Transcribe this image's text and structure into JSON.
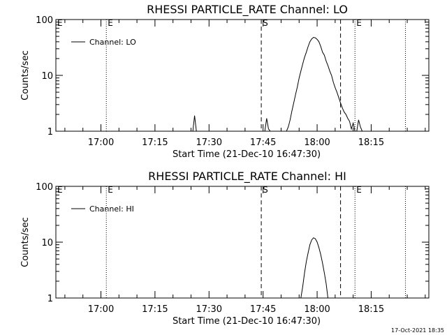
{
  "chart_data": [
    {
      "type": "line",
      "title": "RHESSI PARTICLE_RATE Channel: LO",
      "xlabel": "Start Time (21-Dec-10 16:47:30)",
      "ylabel": "Counts/sec",
      "y_scale": "log",
      "ylim": [
        1,
        100
      ],
      "y_ticks": [
        1,
        10,
        100
      ],
      "y_tick_labels": [
        "1",
        "10",
        "100"
      ],
      "xlim": [
        "16:47:30",
        "18:31:00"
      ],
      "x_ticks": [
        "17:00",
        "17:15",
        "17:30",
        "17:45",
        "18:00",
        "18:15"
      ],
      "legend": "top-left",
      "markers": [
        {
          "time": "17:01:30",
          "style": "dotted",
          "label": "E"
        },
        {
          "time": "17:44:30",
          "style": "dashed",
          "label": "S"
        },
        {
          "time": "18:06:30",
          "style": "dashed",
          "label": ""
        },
        {
          "time": "18:10:30",
          "style": "dotted",
          "label": "E"
        },
        {
          "time": "18:24:30",
          "style": "dotted",
          "label": ""
        }
      ],
      "series": [
        {
          "name": "Channel: LO",
          "x": [
            "17:25:30",
            "17:26:00",
            "17:26:30",
            "17:45:30",
            "17:46:00",
            "17:46:30",
            "17:47:00",
            "17:51:30",
            "17:52:00",
            "17:52:30",
            "17:53:00",
            "17:53:30",
            "17:54:00",
            "17:54:30",
            "17:55:00",
            "17:55:30",
            "17:56:00",
            "17:56:30",
            "17:57:00",
            "17:57:30",
            "17:58:00",
            "17:58:30",
            "17:59:00",
            "17:59:30",
            "18:00:00",
            "18:00:30",
            "18:01:00",
            "18:01:30",
            "18:02:00",
            "18:02:30",
            "18:03:00",
            "18:03:30",
            "18:04:00",
            "18:04:30",
            "18:05:00",
            "18:05:30",
            "18:06:00",
            "18:06:30",
            "18:07:00",
            "18:07:30",
            "18:08:00",
            "18:08:30",
            "18:09:00",
            "18:09:30",
            "18:10:00",
            "18:10:30",
            "18:11:00",
            "18:11:30",
            "18:12:00",
            "18:12:30"
          ],
          "y": [
            1,
            1.9,
            1,
            1,
            1.7,
            1.1,
            1,
            1,
            1.2,
            1.6,
            2.3,
            3.2,
            4.5,
            6.2,
            9,
            12,
            16,
            21,
            26,
            33,
            40,
            45,
            48,
            47,
            44,
            40,
            33,
            26,
            23,
            18,
            15,
            12,
            10,
            7.5,
            6,
            5,
            4,
            3.2,
            2.6,
            2.2,
            2.0,
            1.7,
            1.5,
            1.1,
            1.4,
            1,
            1,
            1.6,
            1.2,
            1
          ]
        }
      ]
    },
    {
      "type": "line",
      "title": "RHESSI PARTICLE_RATE Channel: HI",
      "xlabel": "Start Time (21-Dec-10 16:47:30)",
      "ylabel": "Counts/sec",
      "y_scale": "log",
      "ylim": [
        1,
        100
      ],
      "y_ticks": [
        1,
        10,
        100
      ],
      "y_tick_labels": [
        "1",
        "10",
        "100"
      ],
      "xlim": [
        "16:47:30",
        "18:31:00"
      ],
      "x_ticks": [
        "17:00",
        "17:15",
        "17:30",
        "17:45",
        "18:00",
        "18:15"
      ],
      "legend": "top-left",
      "markers": [
        {
          "time": "17:01:30",
          "style": "dotted",
          "label": "E"
        },
        {
          "time": "17:44:30",
          "style": "dashed",
          "label": "S"
        },
        {
          "time": "18:06:30",
          "style": "dashed",
          "label": ""
        },
        {
          "time": "18:10:30",
          "style": "dotted",
          "label": "E"
        },
        {
          "time": "18:24:30",
          "style": "dotted",
          "label": ""
        }
      ],
      "series": [
        {
          "name": "Channel: HI",
          "x": [
            "17:55:30",
            "17:56:00",
            "17:56:30",
            "17:57:00",
            "17:57:30",
            "17:58:00",
            "17:58:30",
            "17:59:00",
            "17:59:30",
            "18:00:00",
            "18:00:30",
            "18:01:00",
            "18:01:30",
            "18:02:00",
            "18:02:30",
            "18:03:00"
          ],
          "y": [
            1,
            1.6,
            2.8,
            4.5,
            6.5,
            9,
            11,
            12,
            11.5,
            10,
            8,
            6,
            4.2,
            2.8,
            1.8,
            1
          ]
        }
      ]
    }
  ],
  "footer": "17-Oct-2021 18:35"
}
